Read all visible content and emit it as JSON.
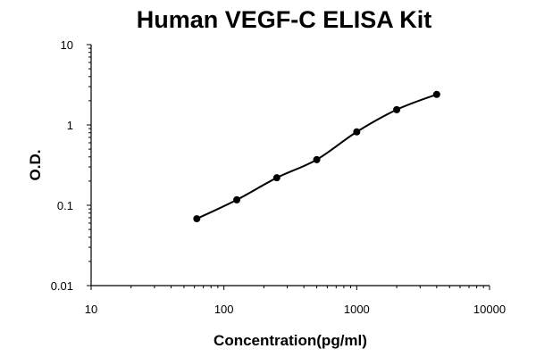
{
  "chart_data": {
    "type": "scatter",
    "title": "Human VEGF-C ELISA Kit",
    "xlabel": "Concentration(pg/ml)",
    "ylabel": "O.D.",
    "x_scale": "log",
    "y_scale": "log",
    "xlim": [
      10,
      10000
    ],
    "ylim": [
      0.01,
      10
    ],
    "x_ticks": [
      "10",
      "100",
      "1000",
      "10000"
    ],
    "y_ticks": [
      "10",
      "1",
      "0.1",
      "0.01"
    ],
    "grid": false,
    "legend": "none",
    "marker_color": "#000000",
    "line_color": "#000000",
    "points": [
      {
        "x": 62.5,
        "y": 0.068
      },
      {
        "x": 125,
        "y": 0.117
      },
      {
        "x": 250,
        "y": 0.22
      },
      {
        "x": 500,
        "y": 0.37
      },
      {
        "x": 1000,
        "y": 0.82
      },
      {
        "x": 2000,
        "y": 1.55
      },
      {
        "x": 4000,
        "y": 2.4
      }
    ]
  }
}
